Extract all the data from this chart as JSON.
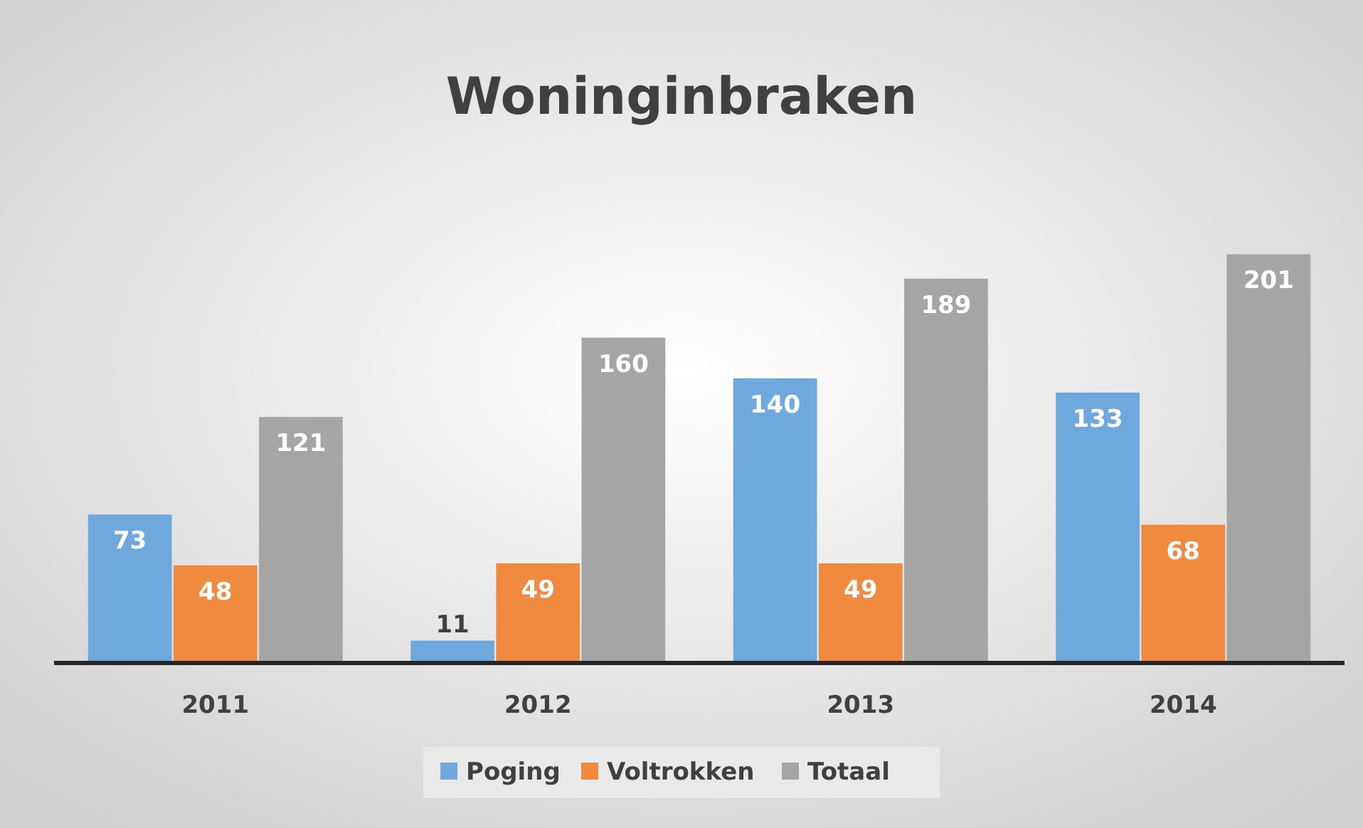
{
  "chart_data": {
    "type": "bar",
    "title": "Woninginbraken",
    "categories": [
      "2011",
      "2012",
      "2013",
      "2014"
    ],
    "series": [
      {
        "name": "Poging",
        "color": "#6fa8dc",
        "values": [
          73,
          11,
          140,
          133
        ]
      },
      {
        "name": "Voltrokken",
        "color": "#f08a3e",
        "values": [
          48,
          49,
          49,
          68
        ]
      },
      {
        "name": "Totaal",
        "color": "#a5a5a5",
        "values": [
          121,
          160,
          189,
          201
        ]
      }
    ],
    "data_labels": true,
    "legend": "bottom",
    "grid": false
  }
}
